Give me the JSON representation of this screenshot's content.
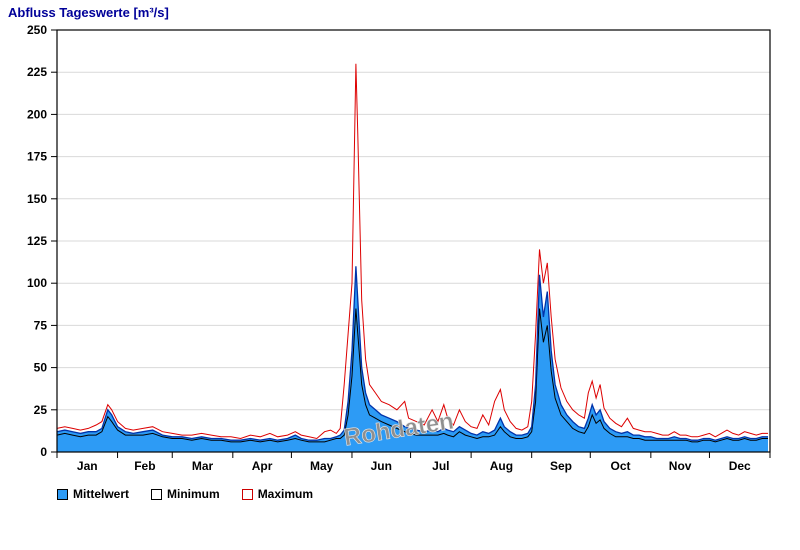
{
  "watermark": "Rohdaten",
  "chart_data": {
    "type": "line",
    "title": "Abfluss Tageswerte [m³/s]",
    "xlabel": "",
    "ylabel": "m³/s",
    "ylim": [
      0,
      250
    ],
    "y_ticks": [
      0,
      25,
      50,
      75,
      100,
      125,
      150,
      175,
      200,
      225,
      250
    ],
    "grid": "horizontal",
    "legend_position": "bottom",
    "months": [
      "Jan",
      "Feb",
      "Mar",
      "Apr",
      "May",
      "Jun",
      "Jul",
      "Aug",
      "Sep",
      "Oct",
      "Nov",
      "Dec"
    ],
    "month_boundaries": [
      0,
      31,
      59,
      90,
      120,
      151,
      181,
      212,
      243,
      273,
      304,
      334,
      365
    ],
    "x_unit": "day_of_year",
    "series": [
      {
        "name": "Mittelwert",
        "role": "mean",
        "swatch_fill": "#2D9BF5",
        "swatch_border": "#000000"
      },
      {
        "name": "Minimum",
        "role": "min",
        "swatch_fill": "#FFFFFF",
        "swatch_border": "#000000"
      },
      {
        "name": "Maximum",
        "role": "max",
        "swatch_fill": "#FFFFFF",
        "swatch_border": "#CC0000"
      }
    ],
    "colors": {
      "mean_fill": "#2D9BF5",
      "mean_line": "#0033AA",
      "min_line": "#000000",
      "max_line": "#DD0000",
      "grid": "#D9D9D9",
      "frame": "#000000",
      "title": "#000099",
      "watermark": "#8F8F8F"
    },
    "points_format": [
      "day_of_year",
      "mean",
      "min",
      "max"
    ],
    "points": [
      [
        0,
        12,
        10,
        14
      ],
      [
        4,
        13,
        11,
        15
      ],
      [
        8,
        12,
        10,
        14
      ],
      [
        12,
        11,
        9,
        13
      ],
      [
        16,
        12,
        10,
        14
      ],
      [
        20,
        12,
        10,
        16
      ],
      [
        23,
        14,
        12,
        18
      ],
      [
        26,
        25,
        21,
        28
      ],
      [
        28,
        22,
        18,
        25
      ],
      [
        31,
        15,
        13,
        18
      ],
      [
        35,
        12,
        10,
        14
      ],
      [
        39,
        11,
        10,
        13
      ],
      [
        44,
        12,
        10,
        14
      ],
      [
        49,
        13,
        11,
        15
      ],
      [
        54,
        10,
        9,
        12
      ],
      [
        59,
        9,
        8,
        11
      ],
      [
        64,
        9,
        8,
        10
      ],
      [
        69,
        8,
        7,
        10
      ],
      [
        74,
        9,
        8,
        11
      ],
      [
        79,
        8,
        7,
        10
      ],
      [
        84,
        8,
        7,
        9
      ],
      [
        89,
        7,
        6,
        9
      ],
      [
        94,
        7,
        6,
        8
      ],
      [
        99,
        8,
        7,
        10
      ],
      [
        104,
        7,
        6,
        9
      ],
      [
        109,
        8,
        7,
        11
      ],
      [
        113,
        7,
        6,
        9
      ],
      [
        118,
        8,
        7,
        10
      ],
      [
        122,
        10,
        8,
        12
      ],
      [
        125,
        8,
        7,
        10
      ],
      [
        129,
        7,
        6,
        9
      ],
      [
        133,
        7,
        6,
        8
      ],
      [
        137,
        8,
        6,
        12
      ],
      [
        140,
        8,
        7,
        13
      ],
      [
        143,
        9,
        8,
        11
      ],
      [
        145,
        10,
        8,
        14
      ],
      [
        147,
        13,
        10,
        40
      ],
      [
        149,
        30,
        22,
        70
      ],
      [
        151,
        60,
        45,
        100
      ],
      [
        153,
        110,
        85,
        230
      ],
      [
        154,
        90,
        70,
        188
      ],
      [
        156,
        50,
        40,
        90
      ],
      [
        158,
        35,
        28,
        55
      ],
      [
        160,
        28,
        22,
        40
      ],
      [
        163,
        25,
        20,
        35
      ],
      [
        166,
        22,
        18,
        30
      ],
      [
        170,
        20,
        16,
        28
      ],
      [
        174,
        18,
        14,
        25
      ],
      [
        178,
        15,
        12,
        30
      ],
      [
        180,
        14,
        11,
        20
      ],
      [
        184,
        13,
        10,
        18
      ],
      [
        188,
        12,
        10,
        16
      ],
      [
        192,
        13,
        10,
        25
      ],
      [
        195,
        12,
        10,
        18
      ],
      [
        198,
        14,
        11,
        28
      ],
      [
        200,
        13,
        10,
        20
      ],
      [
        203,
        12,
        9,
        16
      ],
      [
        206,
        15,
        12,
        25
      ],
      [
        209,
        13,
        10,
        18
      ],
      [
        212,
        11,
        9,
        15
      ],
      [
        215,
        10,
        8,
        14
      ],
      [
        218,
        12,
        9,
        22
      ],
      [
        221,
        11,
        9,
        16
      ],
      [
        224,
        13,
        10,
        30
      ],
      [
        227,
        20,
        15,
        37
      ],
      [
        229,
        15,
        12,
        25
      ],
      [
        232,
        12,
        9,
        18
      ],
      [
        235,
        10,
        8,
        14
      ],
      [
        238,
        10,
        8,
        13
      ],
      [
        241,
        11,
        9,
        15
      ],
      [
        243,
        15,
        12,
        30
      ],
      [
        245,
        40,
        30,
        70
      ],
      [
        247,
        105,
        85,
        120
      ],
      [
        249,
        80,
        65,
        100
      ],
      [
        251,
        95,
        75,
        112
      ],
      [
        253,
        60,
        48,
        80
      ],
      [
        255,
        40,
        32,
        55
      ],
      [
        258,
        28,
        22,
        38
      ],
      [
        261,
        22,
        18,
        30
      ],
      [
        264,
        18,
        14,
        25
      ],
      [
        267,
        15,
        12,
        22
      ],
      [
        270,
        14,
        11,
        20
      ],
      [
        272,
        20,
        15,
        35
      ],
      [
        274,
        28,
        22,
        42
      ],
      [
        276,
        22,
        17,
        32
      ],
      [
        278,
        25,
        19,
        40
      ],
      [
        280,
        18,
        14,
        26
      ],
      [
        283,
        14,
        11,
        20
      ],
      [
        286,
        12,
        9,
        17
      ],
      [
        289,
        11,
        9,
        15
      ],
      [
        292,
        12,
        9,
        20
      ],
      [
        295,
        10,
        8,
        14
      ],
      [
        298,
        10,
        8,
        13
      ],
      [
        301,
        9,
        7,
        12
      ],
      [
        304,
        9,
        7,
        12
      ],
      [
        307,
        8,
        7,
        11
      ],
      [
        310,
        8,
        7,
        10
      ],
      [
        313,
        8,
        7,
        10
      ],
      [
        316,
        9,
        7,
        12
      ],
      [
        319,
        8,
        7,
        10
      ],
      [
        322,
        8,
        7,
        10
      ],
      [
        325,
        7,
        6,
        9
      ],
      [
        328,
        7,
        6,
        9
      ],
      [
        331,
        8,
        7,
        10
      ],
      [
        334,
        8,
        7,
        11
      ],
      [
        337,
        7,
        6,
        9
      ],
      [
        340,
        8,
        7,
        11
      ],
      [
        343,
        9,
        8,
        13
      ],
      [
        346,
        8,
        7,
        11
      ],
      [
        349,
        8,
        7,
        10
      ],
      [
        352,
        9,
        8,
        12
      ],
      [
        355,
        8,
        7,
        11
      ],
      [
        358,
        8,
        7,
        10
      ],
      [
        361,
        9,
        8,
        11
      ],
      [
        364,
        9,
        8,
        11
      ]
    ]
  }
}
